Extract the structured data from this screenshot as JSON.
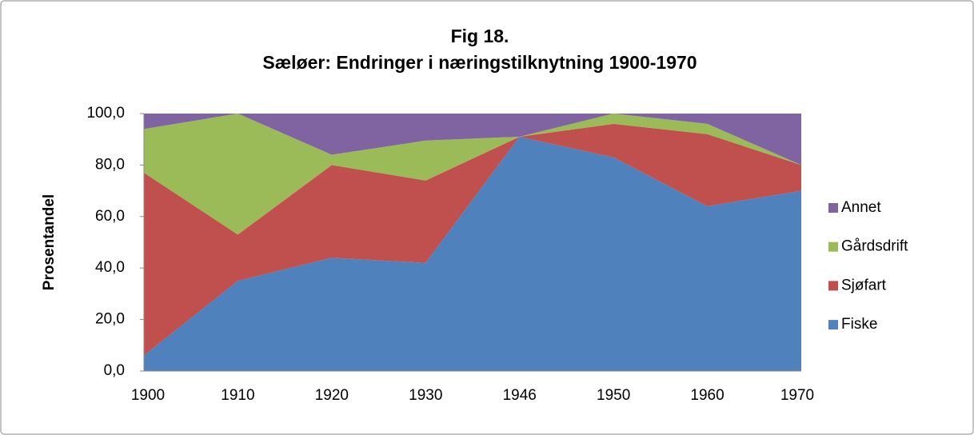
{
  "chart_data": {
    "type": "area",
    "stacked": true,
    "title": "Fig 18.",
    "subtitle": "Sæløer: Endringer i næringstilknytning 1900-1970",
    "y_label": "Prosentandel",
    "categories": [
      "1900",
      "1910",
      "1920",
      "1930",
      "1946",
      "1950",
      "1960",
      "1970"
    ],
    "series": [
      {
        "name": "Fiske",
        "color": "#4f81bd",
        "values": [
          6,
          35,
          44,
          42,
          91,
          83,
          64,
          70
        ]
      },
      {
        "name": "Sjøfart",
        "color": "#c0504d",
        "values": [
          71,
          18,
          36,
          32,
          0,
          13,
          28,
          10
        ]
      },
      {
        "name": "Gårdsdrift",
        "color": "#9bbb59",
        "values": [
          17,
          47,
          4,
          15.5,
          0,
          4,
          4,
          0
        ]
      },
      {
        "name": "Annet",
        "color": "#8064a2",
        "values": [
          6,
          0,
          16,
          10.5,
          9,
          0,
          4,
          20
        ]
      }
    ],
    "ylim": [
      0,
      100
    ],
    "yticks": [
      {
        "value": 0,
        "label": "0,0"
      },
      {
        "value": 20,
        "label": "20,0"
      },
      {
        "value": 40,
        "label": "40,0"
      },
      {
        "value": 60,
        "label": "60,0"
      },
      {
        "value": 80,
        "label": "80,0"
      },
      {
        "value": 100,
        "label": "100,0"
      }
    ],
    "legend": "right"
  }
}
